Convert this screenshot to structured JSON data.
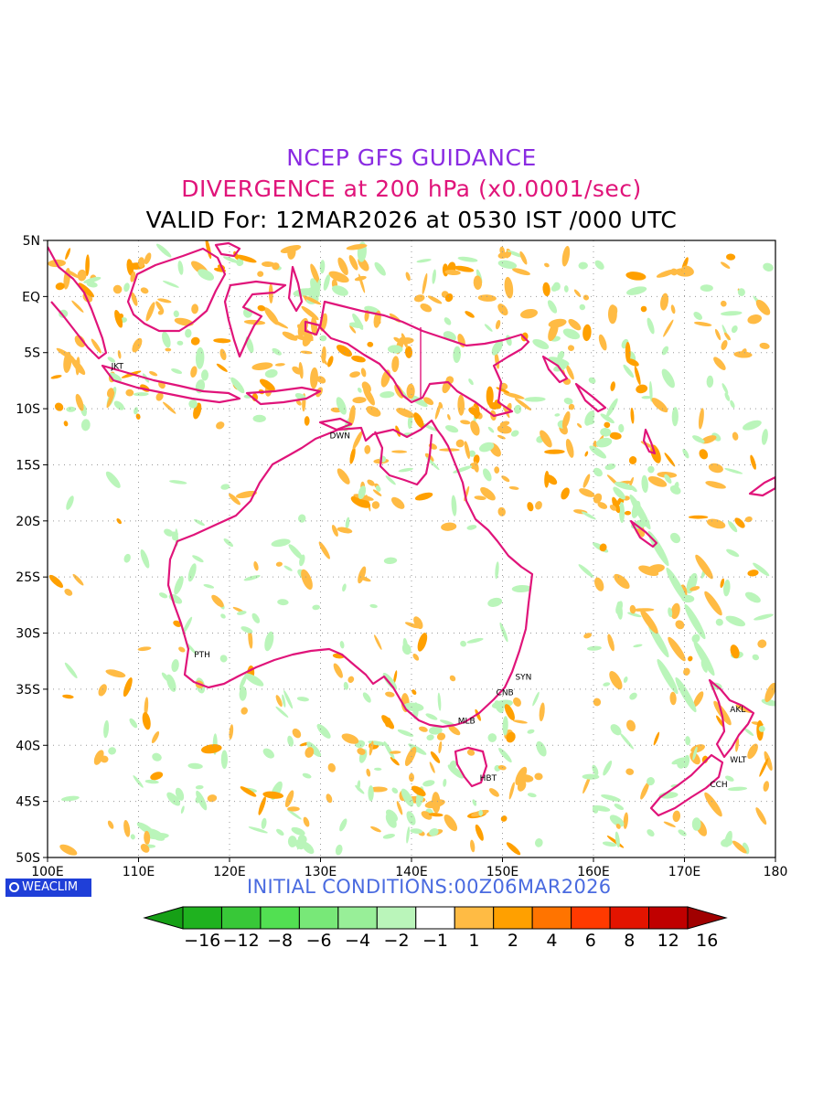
{
  "titles": {
    "line1": "NCEP GFS GUIDANCE",
    "line2": "DIVERGENCE at 200 hPa (x0.0001/sec)",
    "line3": "VALID For: 12MAR2026 at 0530 IST /000 UTC"
  },
  "map": {
    "lat_ticks": [
      "5N",
      "EQ",
      "5S",
      "10S",
      "15S",
      "20S",
      "25S",
      "30S",
      "35S",
      "40S",
      "45S",
      "50S"
    ],
    "lon_ticks": [
      "100E",
      "110E",
      "120E",
      "130E",
      "140E",
      "150E",
      "160E",
      "170E",
      "180"
    ],
    "cities": [
      {
        "code": "JKT",
        "lon": 106.8,
        "lat": -6.2
      },
      {
        "code": "DWN",
        "lon": 130.8,
        "lat": -12.4
      },
      {
        "code": "PTH",
        "lon": 115.9,
        "lat": -31.9
      },
      {
        "code": "SYN",
        "lon": 151.2,
        "lat": -33.9
      },
      {
        "code": "CNB",
        "lon": 149.1,
        "lat": -35.3
      },
      {
        "code": "MLB",
        "lon": 144.9,
        "lat": -37.8
      },
      {
        "code": "HBT",
        "lon": 147.3,
        "lat": -42.9
      },
      {
        "code": "AKL",
        "lon": 174.8,
        "lat": -36.8
      },
      {
        "code": "WLT",
        "lon": 174.8,
        "lat": -41.3
      },
      {
        "code": "CCH",
        "lon": 172.6,
        "lat": -43.5
      }
    ]
  },
  "logo": {
    "text": "WEACLIM"
  },
  "initial_conditions": "INITIAL CONDITIONS:00Z06MAR2026",
  "colorbar": {
    "labels": [
      "−16",
      "−12",
      "−8",
      "−6",
      "−4",
      "−2",
      "−1",
      "1",
      "2",
      "4",
      "6",
      "8",
      "12",
      "16"
    ],
    "colors": {
      "neg_extreme": "#16a016",
      "neg": [
        "#1fb21f",
        "#38c838",
        "#52e052",
        "#78e878",
        "#98ef98",
        "#baf5ba"
      ],
      "neutral": "#ffffff",
      "pos": [
        "#ffbb44",
        "#ffa000",
        "#ff7400",
        "#ff3a00",
        "#e31400",
        "#c00000"
      ],
      "pos_extreme": "#a00000",
      "coast": "#e0147a"
    }
  }
}
